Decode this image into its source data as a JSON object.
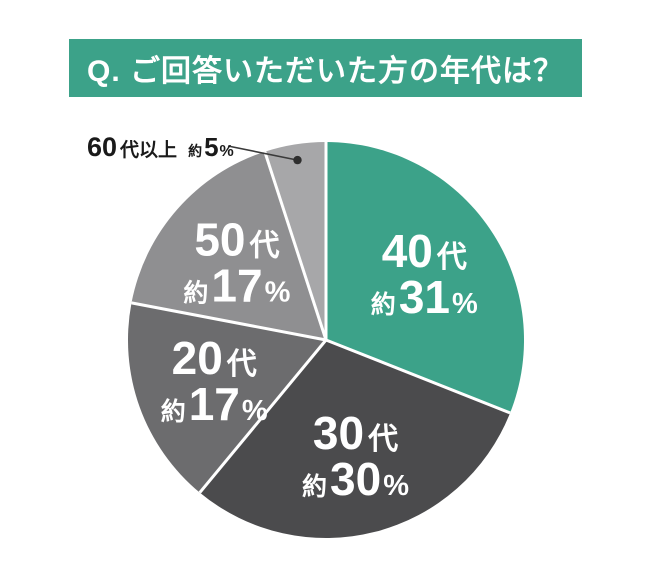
{
  "header": {
    "title": "Q. ご回答いただいた方の年代は？",
    "background_color": "#3CA289",
    "text_color": "#FFFFFF"
  },
  "chart_data": {
    "type": "pie",
    "title": "Q. ご回答いただいた方の年代は？",
    "start_angle_deg": 0,
    "direction": "clockwise",
    "divider_color": "#FFFFFF",
    "background_color": "#FFFFFF",
    "value_prefix": "約",
    "value_unit": "%",
    "categories": [
      "40代",
      "30代",
      "20代",
      "50代",
      "60代以上"
    ],
    "values": [
      31,
      30,
      17,
      17,
      5
    ],
    "slices": [
      {
        "id": "40s",
        "label": "40代",
        "num": "40",
        "suffix": "代",
        "approx": "約",
        "pct_num": "31",
        "pct_sign": "%",
        "value_pct": 31,
        "value_label": "約31%",
        "color": "#3CA289",
        "text_color": "#FFFFFF",
        "label_style": "inside"
      },
      {
        "id": "30s",
        "label": "30代",
        "num": "30",
        "suffix": "代",
        "approx": "約",
        "pct_num": "30",
        "pct_sign": "%",
        "value_pct": 30,
        "value_label": "約30%",
        "color": "#4B4B4D",
        "text_color": "#FFFFFF",
        "label_style": "inside"
      },
      {
        "id": "20s",
        "label": "20代",
        "num": "20",
        "suffix": "代",
        "approx": "約",
        "pct_num": "17",
        "pct_sign": "%",
        "value_pct": 17,
        "value_label": "約17%",
        "color": "#6C6C6E",
        "text_color": "#FFFFFF",
        "label_style": "inside"
      },
      {
        "id": "50s",
        "label": "50代",
        "num": "50",
        "suffix": "代",
        "approx": "約",
        "pct_num": "17",
        "pct_sign": "%",
        "value_pct": 17,
        "value_label": "約17%",
        "color": "#8F8F91",
        "text_color": "#FFFFFF",
        "label_style": "inside"
      },
      {
        "id": "60s-plus",
        "label": "60代以上",
        "num": "60",
        "suffix": "代以上",
        "approx": "約",
        "pct_num": "5",
        "pct_sign": "%",
        "value_pct": 5,
        "value_label": "約5%",
        "color": "#A7A7A9",
        "text_color": "#1A1A1A",
        "label_style": "callout"
      }
    ],
    "callout": {
      "line_color": "#3A3A3A",
      "dot_color": "#2E2E2E",
      "text_color": "#1A1A1A"
    }
  }
}
